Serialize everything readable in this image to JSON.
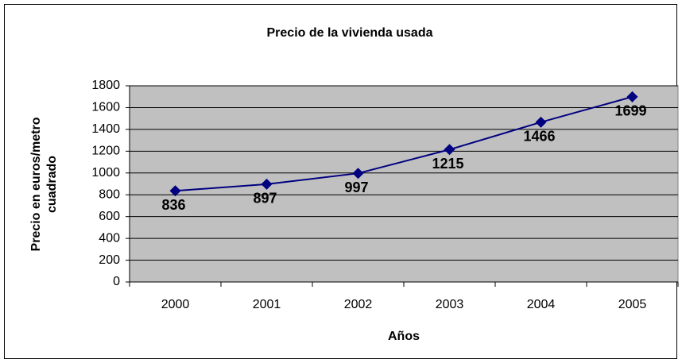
{
  "chart_data": {
    "type": "line",
    "title": "Precio de la vivienda usada",
    "xlabel": "Años",
    "ylabel": [
      "Precio en euros/metro",
      "cuadrado"
    ],
    "categories": [
      "2000",
      "2001",
      "2002",
      "2003",
      "2004",
      "2005"
    ],
    "values": [
      836,
      897,
      997,
      1215,
      1466,
      1699
    ],
    "color": "#000080",
    "ylim": [
      0,
      1800
    ],
    "yticks": [
      0,
      200,
      400,
      600,
      800,
      1000,
      1200,
      1400,
      1600,
      1800
    ],
    "grid": true
  }
}
